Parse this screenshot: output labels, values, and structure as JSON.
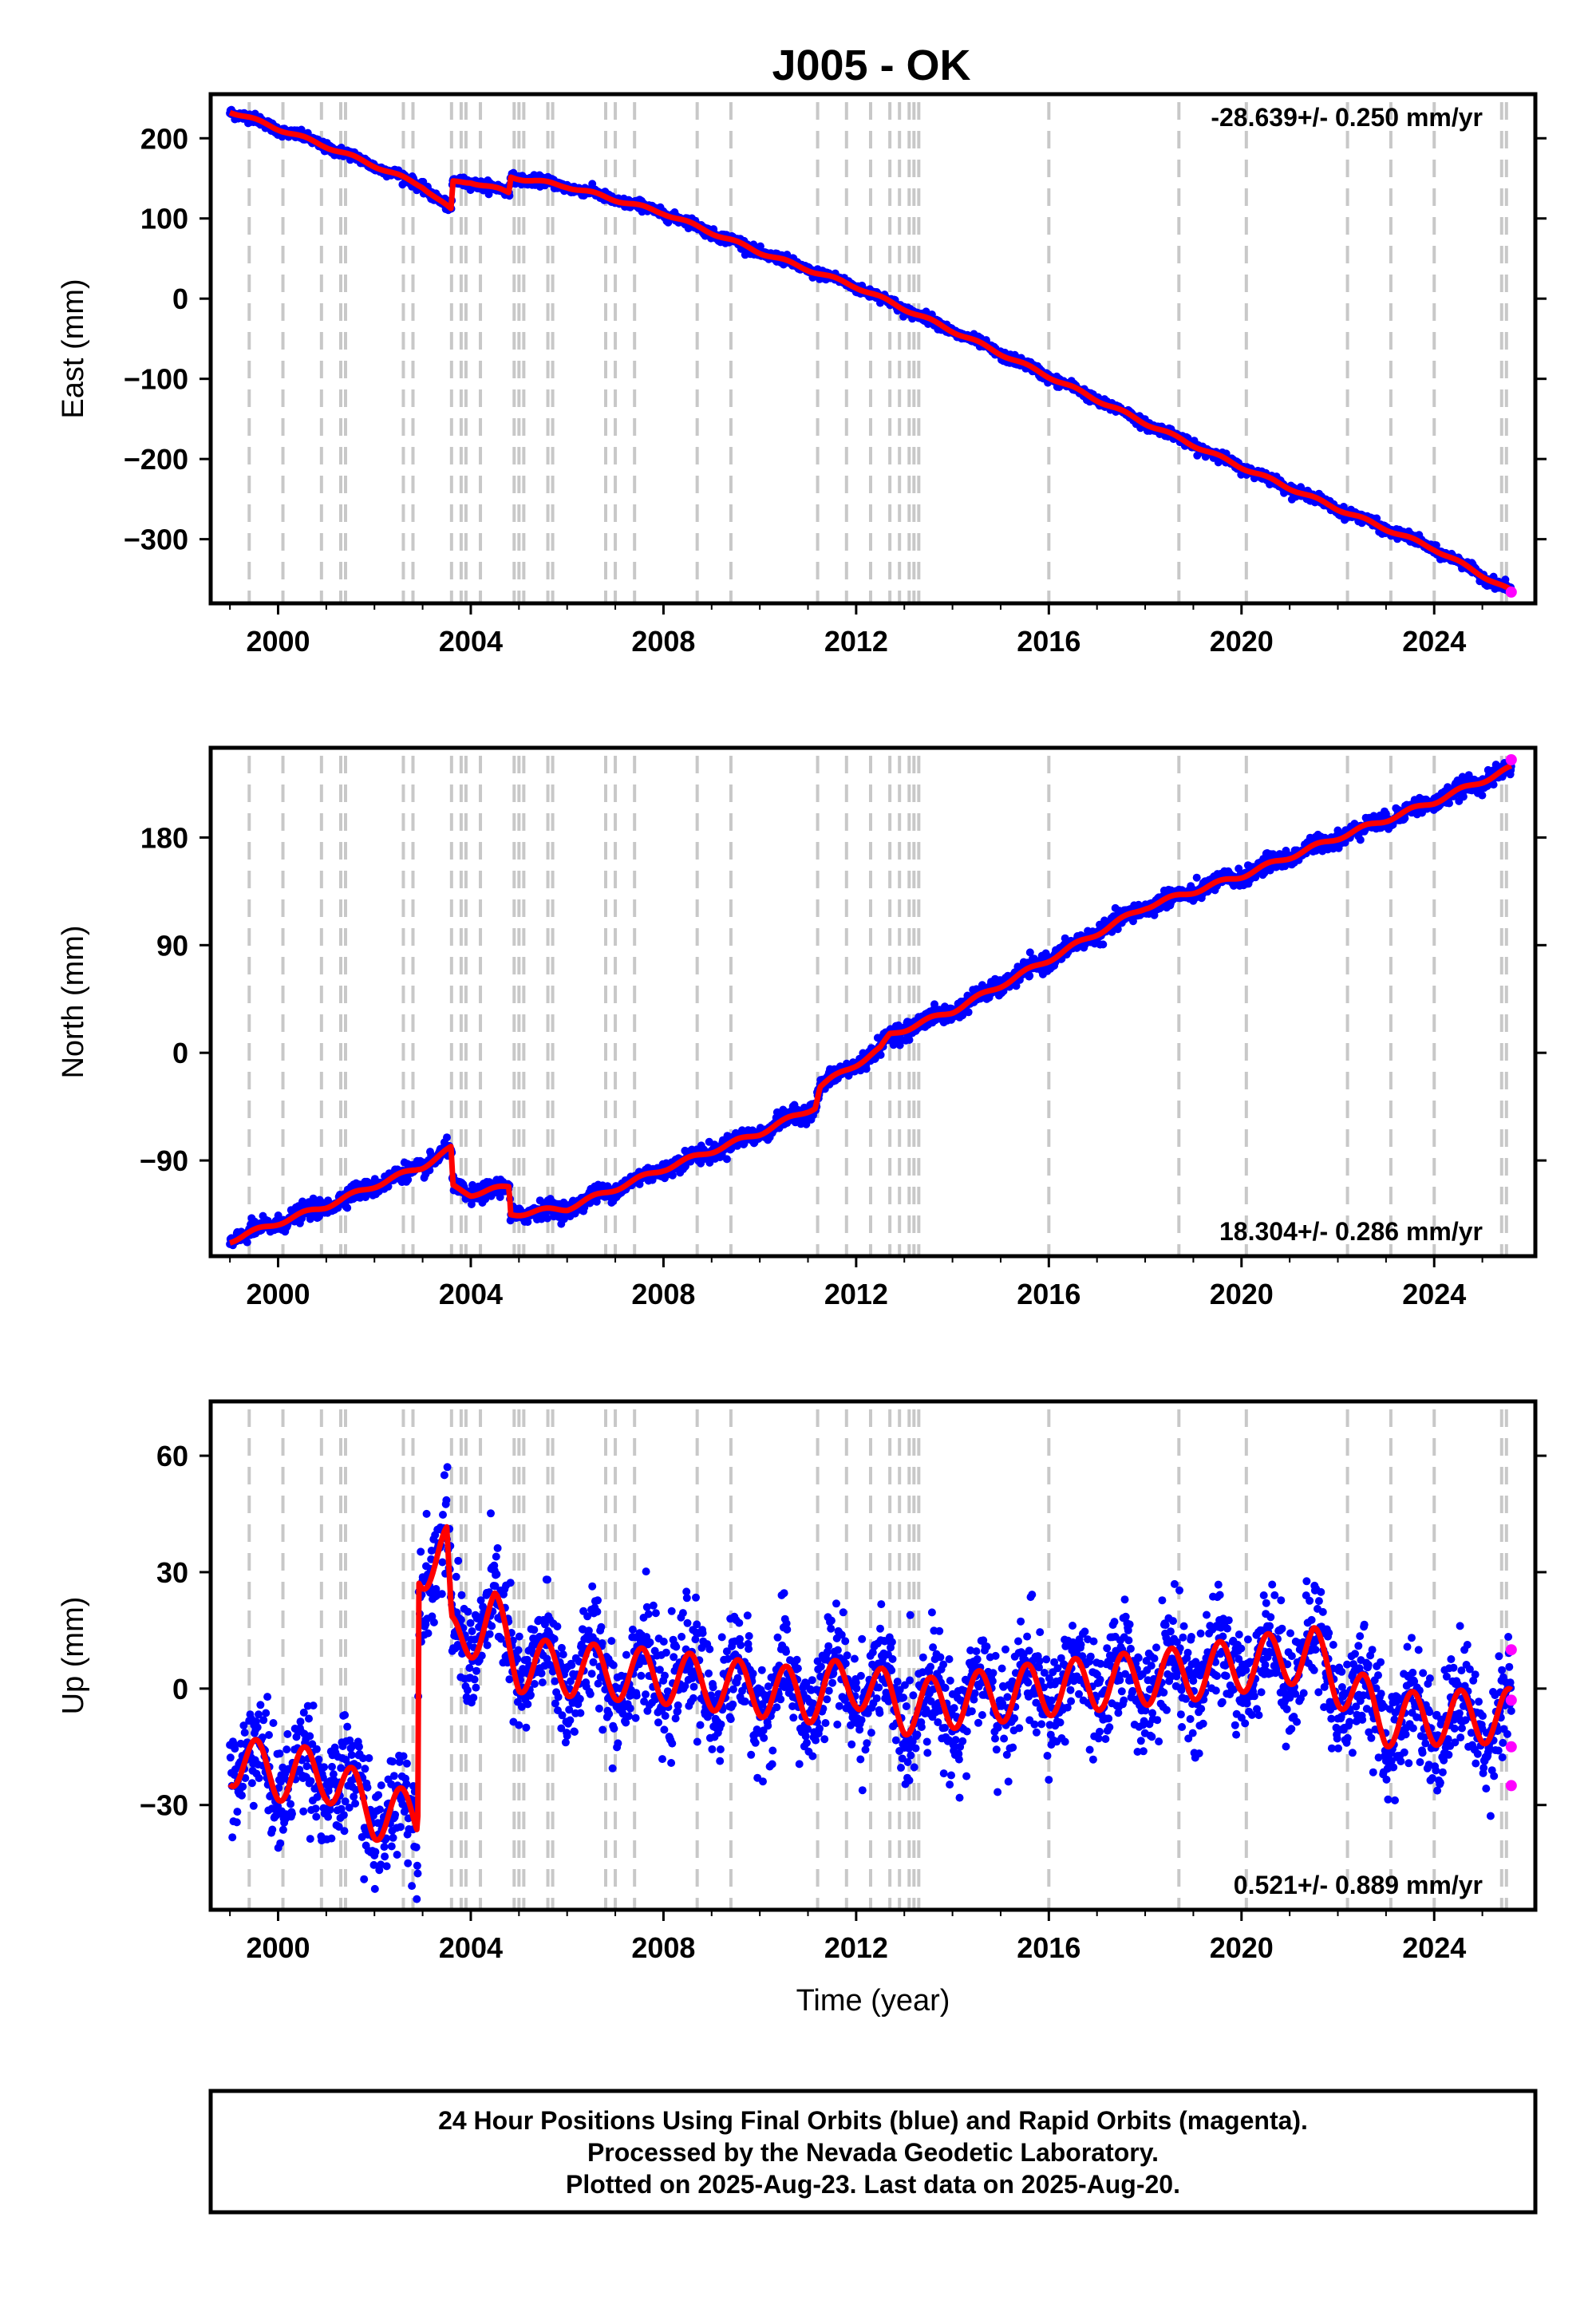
{
  "chart_data": {
    "title": "J005 - OK",
    "type": "scatter",
    "xlabel": "Time (year)",
    "xlim": [
      1998.6,
      2026.1
    ],
    "x_ticks": [
      2000,
      2004,
      2008,
      2012,
      2016,
      2020,
      2024
    ],
    "x_tick_labels": [
      "2000",
      "2004",
      "2008",
      "2012",
      "2016",
      "2020",
      "2024"
    ],
    "equipment_changes": [
      1999.4,
      2000.1,
      2000.9,
      2001.3,
      2001.4,
      2002.6,
      2002.8,
      2003.6,
      2003.8,
      2003.9,
      2004.2,
      2004.9,
      2005.0,
      2005.1,
      2005.6,
      2005.7,
      2006.8,
      2007.0,
      2007.4,
      2008.7,
      2009.4,
      2011.2,
      2011.8,
      2012.3,
      2012.7,
      2012.9,
      2013.1,
      2013.2,
      2013.3,
      2016.0,
      2018.7,
      2020.1,
      2022.2,
      2023.1,
      2024.0,
      2025.4,
      2025.5
    ],
    "colors": {
      "final_orbits": "#0000ff",
      "rapid_orbits": "#ff00ff",
      "model_fit": "#ff0000",
      "equipment_change_lines": "#c8c8c8"
    },
    "panels": [
      {
        "id": "east",
        "ylabel": "East (mm)",
        "ylim": [
          -380,
          255
        ],
        "y_ticks": [
          200,
          100,
          0,
          -100,
          -200,
          -300
        ],
        "y_tick_labels": [
          "200",
          "100",
          "0",
          "−100",
          "−200",
          "−300"
        ],
        "rate": "-28.639+/- 0.250 mm/yr",
        "rate_position": "top-right",
        "scatter": 3,
        "annual_amplitude": 2,
        "series": [
          {
            "x": 1999.0,
            "y": 234
          },
          {
            "x": 2000.0,
            "y": 212
          },
          {
            "x": 2001.0,
            "y": 190
          },
          {
            "x": 2002.0,
            "y": 166
          },
          {
            "x": 2003.0,
            "y": 140
          },
          {
            "x": 2003.6,
            "y": 110
          },
          {
            "x": 2003.62,
            "y": 145
          },
          {
            "x": 2004.0,
            "y": 146
          },
          {
            "x": 2004.8,
            "y": 132
          },
          {
            "x": 2004.82,
            "y": 152
          },
          {
            "x": 2006.0,
            "y": 140
          },
          {
            "x": 2008.0,
            "y": 107
          },
          {
            "x": 2010.0,
            "y": 58
          },
          {
            "x": 2012.0,
            "y": 15
          },
          {
            "x": 2014.0,
            "y": -40
          },
          {
            "x": 2016.0,
            "y": -97
          },
          {
            "x": 2018.0,
            "y": -155
          },
          {
            "x": 2020.0,
            "y": -210
          },
          {
            "x": 2022.0,
            "y": -262
          },
          {
            "x": 2024.0,
            "y": -312
          },
          {
            "x": 2025.6,
            "y": -365
          }
        ],
        "rapid": [
          {
            "x": 2025.6,
            "y": -366
          }
        ]
      },
      {
        "id": "north",
        "ylabel": "North (mm)",
        "ylim": [
          -170,
          255
        ],
        "y_ticks": [
          180,
          90,
          0,
          -90
        ],
        "y_tick_labels": [
          "180",
          "90",
          "0",
          "−90"
        ],
        "rate": "18.304+/- 0.286 mm/yr",
        "rate_position": "bottom-right",
        "scatter": 3.5,
        "annual_amplitude": 2,
        "series": [
          {
            "x": 1999.0,
            "y": -157
          },
          {
            "x": 2000.0,
            "y": -142
          },
          {
            "x": 2001.0,
            "y": -128
          },
          {
            "x": 2002.0,
            "y": -111
          },
          {
            "x": 2003.0,
            "y": -95
          },
          {
            "x": 2003.6,
            "y": -80
          },
          {
            "x": 2003.62,
            "y": -112
          },
          {
            "x": 2004.0,
            "y": -118
          },
          {
            "x": 2004.8,
            "y": -112
          },
          {
            "x": 2004.82,
            "y": -135
          },
          {
            "x": 2006.0,
            "y": -130
          },
          {
            "x": 2008.0,
            "y": -97
          },
          {
            "x": 2010.0,
            "y": -67
          },
          {
            "x": 2011.15,
            "y": -45
          },
          {
            "x": 2011.25,
            "y": -28
          },
          {
            "x": 2012.5,
            "y": 3
          },
          {
            "x": 2012.7,
            "y": 15
          },
          {
            "x": 2014.0,
            "y": 35
          },
          {
            "x": 2016.0,
            "y": 78
          },
          {
            "x": 2018.0,
            "y": 122
          },
          {
            "x": 2020.0,
            "y": 148
          },
          {
            "x": 2022.0,
            "y": 180
          },
          {
            "x": 2024.0,
            "y": 210
          },
          {
            "x": 2025.6,
            "y": 238
          }
        ],
        "rapid": [
          {
            "x": 2025.6,
            "y": 245
          }
        ]
      },
      {
        "id": "up",
        "ylabel": "Up (mm)",
        "ylim": [
          -57,
          74
        ],
        "y_ticks": [
          60,
          30,
          0,
          -30
        ],
        "y_tick_labels": [
          "60",
          "30",
          "0",
          "−30"
        ],
        "rate": "0.521+/- 0.889 mm/yr",
        "rate_position": "bottom-right",
        "scatter": 7,
        "annual_amplitude": 7,
        "series": [
          {
            "x": 1999.0,
            "y": -18
          },
          {
            "x": 2000.0,
            "y": -22
          },
          {
            "x": 2001.0,
            "y": -22
          },
          {
            "x": 2002.0,
            "y": -32
          },
          {
            "x": 2002.9,
            "y": -33
          },
          {
            "x": 2002.92,
            "y": 32
          },
          {
            "x": 2003.5,
            "y": 35
          },
          {
            "x": 2003.6,
            "y": 12
          },
          {
            "x": 2004.5,
            "y": 18
          },
          {
            "x": 2005.0,
            "y": 6
          },
          {
            "x": 2008.0,
            "y": 3
          },
          {
            "x": 2011.0,
            "y": -2
          },
          {
            "x": 2012.0,
            "y": 2
          },
          {
            "x": 2013.0,
            "y": -5
          },
          {
            "x": 2016.0,
            "y": 0
          },
          {
            "x": 2019.0,
            "y": 4
          },
          {
            "x": 2021.5,
            "y": 9
          },
          {
            "x": 2022.2,
            "y": 0
          },
          {
            "x": 2023.0,
            "y": -8
          },
          {
            "x": 2025.6,
            "y": -7
          }
        ],
        "rapid": [
          {
            "x": 2025.6,
            "y": 10
          },
          {
            "x": 2025.6,
            "y": -3
          },
          {
            "x": 2025.6,
            "y": -15
          },
          {
            "x": 2025.6,
            "y": -25
          }
        ]
      }
    ]
  },
  "footer": {
    "line1": "24 Hour Positions Using Final Orbits (blue) and Rapid Orbits (magenta).",
    "line2": "Processed by the Nevada Geodetic Laboratory.",
    "line3": "Plotted on 2025-Aug-23. Last data on 2025-Aug-20."
  }
}
